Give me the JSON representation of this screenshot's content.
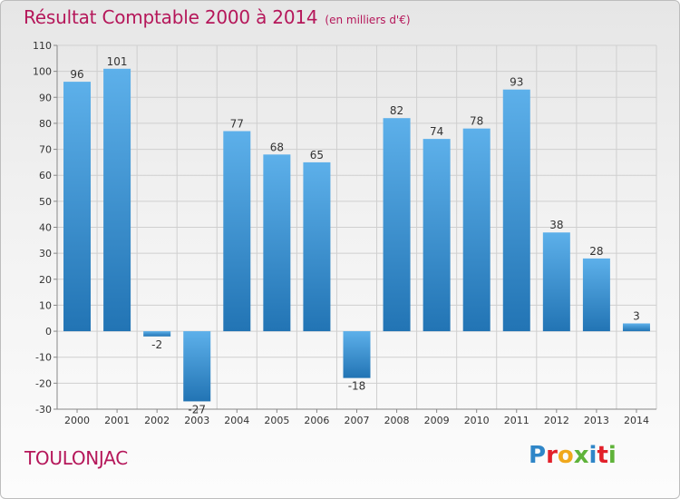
{
  "title": "Résultat Comptable 2000 à 2014",
  "unit": "(en milliers d'€)",
  "commune": "TOULONJAC",
  "logo": {
    "letters": [
      {
        "ch": "P",
        "color": "#2f86c8"
      },
      {
        "ch": "r",
        "color": "#e2202a"
      },
      {
        "ch": "o",
        "color": "#f0a81c"
      },
      {
        "ch": "x",
        "color": "#5fb33a"
      },
      {
        "ch": "i",
        "color": "#2f86c8"
      },
      {
        "ch": "t",
        "color": "#e2202a"
      },
      {
        "ch": "i",
        "color": "#5fb33a"
      }
    ]
  },
  "colors": {
    "accent": "#b5175a",
    "bar_top": "#5db0ea",
    "bar_bottom": "#2274b4"
  },
  "chart_data": {
    "type": "bar",
    "title": "Résultat Comptable 2000 à 2014",
    "categories": [
      "2000",
      "2001",
      "2002",
      "2003",
      "2004",
      "2005",
      "2006",
      "2007",
      "2008",
      "2009",
      "2010",
      "2011",
      "2012",
      "2013",
      "2014"
    ],
    "values": [
      96,
      101,
      -2,
      -27,
      77,
      68,
      65,
      -18,
      82,
      74,
      78,
      93,
      38,
      28,
      3
    ],
    "labels": [
      "96",
      "101",
      "-2",
      "-27",
      "77",
      "68",
      "65",
      "-18",
      "82",
      "74",
      "78",
      "93",
      "38",
      "28",
      "3"
    ],
    "ylim": [
      -30,
      110
    ],
    "yticks": [
      -30,
      -20,
      -10,
      0,
      10,
      20,
      30,
      40,
      50,
      60,
      70,
      80,
      90,
      100,
      110
    ],
    "grid": true
  }
}
